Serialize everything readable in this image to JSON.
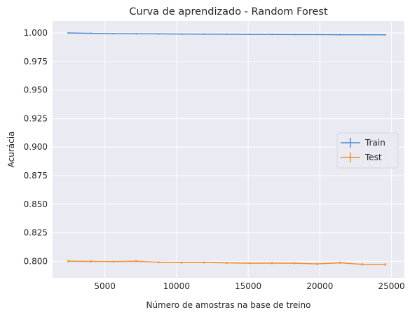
{
  "chart_data": {
    "type": "line",
    "title": "Curva de aprendizado - Random Forest",
    "xlabel": "Número de amostras na base de treino",
    "ylabel": "Acurácia",
    "xlim": [
      1350,
      25900
    ],
    "ylim": [
      0.7855,
      1.0105
    ],
    "xticks": [
      5000,
      10000,
      15000,
      20000,
      25000
    ],
    "xtick_labels": [
      "5000",
      "10000",
      "15000",
      "20000",
      "25000"
    ],
    "yticks": [
      0.8,
      0.825,
      0.85,
      0.875,
      0.9,
      0.925,
      0.95,
      0.975,
      1.0
    ],
    "ytick_labels": [
      "0.800",
      "0.825",
      "0.850",
      "0.875",
      "0.900",
      "0.925",
      "0.950",
      "0.975",
      "1.000"
    ],
    "grid": true,
    "legend_position": "center-right",
    "error_bars": true,
    "x": [
      2440,
      4020,
      5600,
      7180,
      8760,
      10340,
      11920,
      13500,
      15080,
      16660,
      18240,
      19820,
      21400,
      22980,
      24560
    ],
    "series": [
      {
        "name": "Train",
        "color": "#4c8ccf",
        "values": [
          1.0,
          0.9997,
          0.9994,
          0.9993,
          0.9992,
          0.9991,
          0.999,
          0.9989,
          0.9988,
          0.9987,
          0.9986,
          0.9986,
          0.9985,
          0.9985,
          0.9984
        ]
      },
      {
        "name": "Test",
        "color": "#f28e2b",
        "values": [
          0.8,
          0.7999,
          0.7997,
          0.8001,
          0.7992,
          0.7988,
          0.7989,
          0.7986,
          0.7983,
          0.7984,
          0.7983,
          0.7977,
          0.7987,
          0.7973,
          0.7972
        ],
        "errors": [
          0.0012,
          0.001,
          0.0009,
          0.001,
          0.0009,
          0.001,
          0.0009,
          0.0009,
          0.0009,
          0.001,
          0.001,
          0.0011,
          0.001,
          0.0011,
          0.0012
        ]
      }
    ]
  }
}
